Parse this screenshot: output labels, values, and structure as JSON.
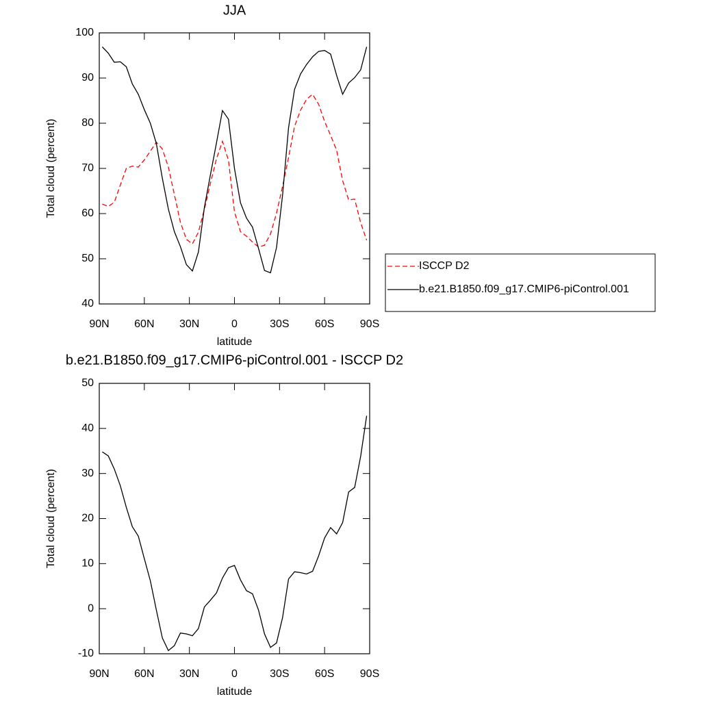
{
  "chart_data": [
    {
      "type": "line",
      "title": "JJA",
      "xlabel": "latitude",
      "ylabel": "Total cloud (percent)",
      "x": [
        88,
        84,
        80,
        76,
        72,
        68,
        64,
        60,
        56,
        52,
        48,
        44,
        40,
        36,
        32,
        28,
        24,
        20,
        16,
        12,
        8,
        4,
        0,
        -4,
        -8,
        -12,
        -16,
        -20,
        -24,
        -28,
        -32,
        -36,
        -40,
        -44,
        -48,
        -52,
        -56,
        -60,
        -64,
        -68,
        -72,
        -76,
        -80,
        -84,
        -88
      ],
      "series": [
        {
          "name": "ISCCP D2",
          "color": "#ff0000",
          "line_style": "dashed",
          "values": [
            62.1,
            61.6,
            62.5,
            66.3,
            70.0,
            70.5,
            70.3,
            71.9,
            73.8,
            75.8,
            74.3,
            70.3,
            64.2,
            58.1,
            54.3,
            53.3,
            55.9,
            61.0,
            66.7,
            72.1,
            76.0,
            71.8,
            60.4,
            56.0,
            55.0,
            53.7,
            52.6,
            53.0,
            55.5,
            60.1,
            66.0,
            72.4,
            79.3,
            82.9,
            85.3,
            86.4,
            84.2,
            80.4,
            77.3,
            74.0,
            67.3,
            63.0,
            63.2,
            58.0,
            54.1
          ]
        },
        {
          "name": "b.e21.B1850.f09_g17.CMIP6-piControl.001",
          "color": "#000000",
          "line_style": "solid",
          "values": [
            96.9,
            95.5,
            93.5,
            93.6,
            92.5,
            88.7,
            86.4,
            83.0,
            80.0,
            75.5,
            67.8,
            61.0,
            56.0,
            52.7,
            48.7,
            47.3,
            51.5,
            61.4,
            68.6,
            75.6,
            82.8,
            80.9,
            70.0,
            62.4,
            59.0,
            57.0,
            52.3,
            47.4,
            46.9,
            52.5,
            64.0,
            79.0,
            87.5,
            90.9,
            93.0,
            94.7,
            95.9,
            96.1,
            95.3,
            90.6,
            86.4,
            88.9,
            90.1,
            91.8,
            96.9
          ]
        }
      ],
      "xlim": [
        90,
        -90
      ],
      "xticks": [
        {
          "value": 90,
          "label": "90N"
        },
        {
          "value": 60,
          "label": "60N"
        },
        {
          "value": 30,
          "label": "30N"
        },
        0,
        {
          "value": -30,
          "label": "30S"
        },
        {
          "value": -60,
          "label": "60S"
        },
        {
          "value": -90,
          "label": "90S"
        }
      ],
      "ylim": [
        40,
        100
      ],
      "yticks": [
        40,
        50,
        60,
        70,
        80,
        90,
        100
      ],
      "legend": "right"
    },
    {
      "type": "line",
      "title": "b.e21.B1850.f09_g17.CMIP6-piControl.001 - ISCCP D2",
      "xlabel": "latitude",
      "ylabel": "Total cloud (percent)",
      "x": [
        88,
        84,
        80,
        76,
        72,
        68,
        64,
        60,
        56,
        52,
        48,
        44,
        40,
        36,
        32,
        28,
        24,
        20,
        16,
        12,
        8,
        4,
        0,
        -4,
        -8,
        -12,
        -16,
        -20,
        -24,
        -28,
        -32,
        -36,
        -40,
        -44,
        -48,
        -52,
        -56,
        -60,
        -64,
        -68,
        -72,
        -76,
        -80,
        -84,
        -88
      ],
      "values": [
        34.8,
        33.9,
        31.0,
        27.3,
        22.5,
        18.2,
        16.1,
        11.1,
        6.2,
        -0.3,
        -6.5,
        -9.3,
        -8.2,
        -5.4,
        -5.6,
        -6.0,
        -4.4,
        0.4,
        1.9,
        3.5,
        6.8,
        9.1,
        9.6,
        6.4,
        4.0,
        3.3,
        -0.3,
        -5.6,
        -8.6,
        -7.6,
        -2.0,
        6.6,
        8.2,
        8.0,
        7.7,
        8.3,
        11.7,
        15.7,
        18.0,
        16.6,
        19.1,
        25.9,
        26.9,
        33.8,
        42.8
      ],
      "color": "#000000",
      "xlim": [
        90,
        -90
      ],
      "xticks": [
        {
          "value": 90,
          "label": "90N"
        },
        {
          "value": 60,
          "label": "60N"
        },
        {
          "value": 30,
          "label": "30N"
        },
        0,
        {
          "value": -30,
          "label": "30S"
        },
        {
          "value": -60,
          "label": "60S"
        },
        {
          "value": -90,
          "label": "90S"
        }
      ],
      "ylim": [
        -10,
        50
      ],
      "yticks": [
        -10,
        0,
        10,
        20,
        30,
        40,
        50
      ]
    }
  ]
}
